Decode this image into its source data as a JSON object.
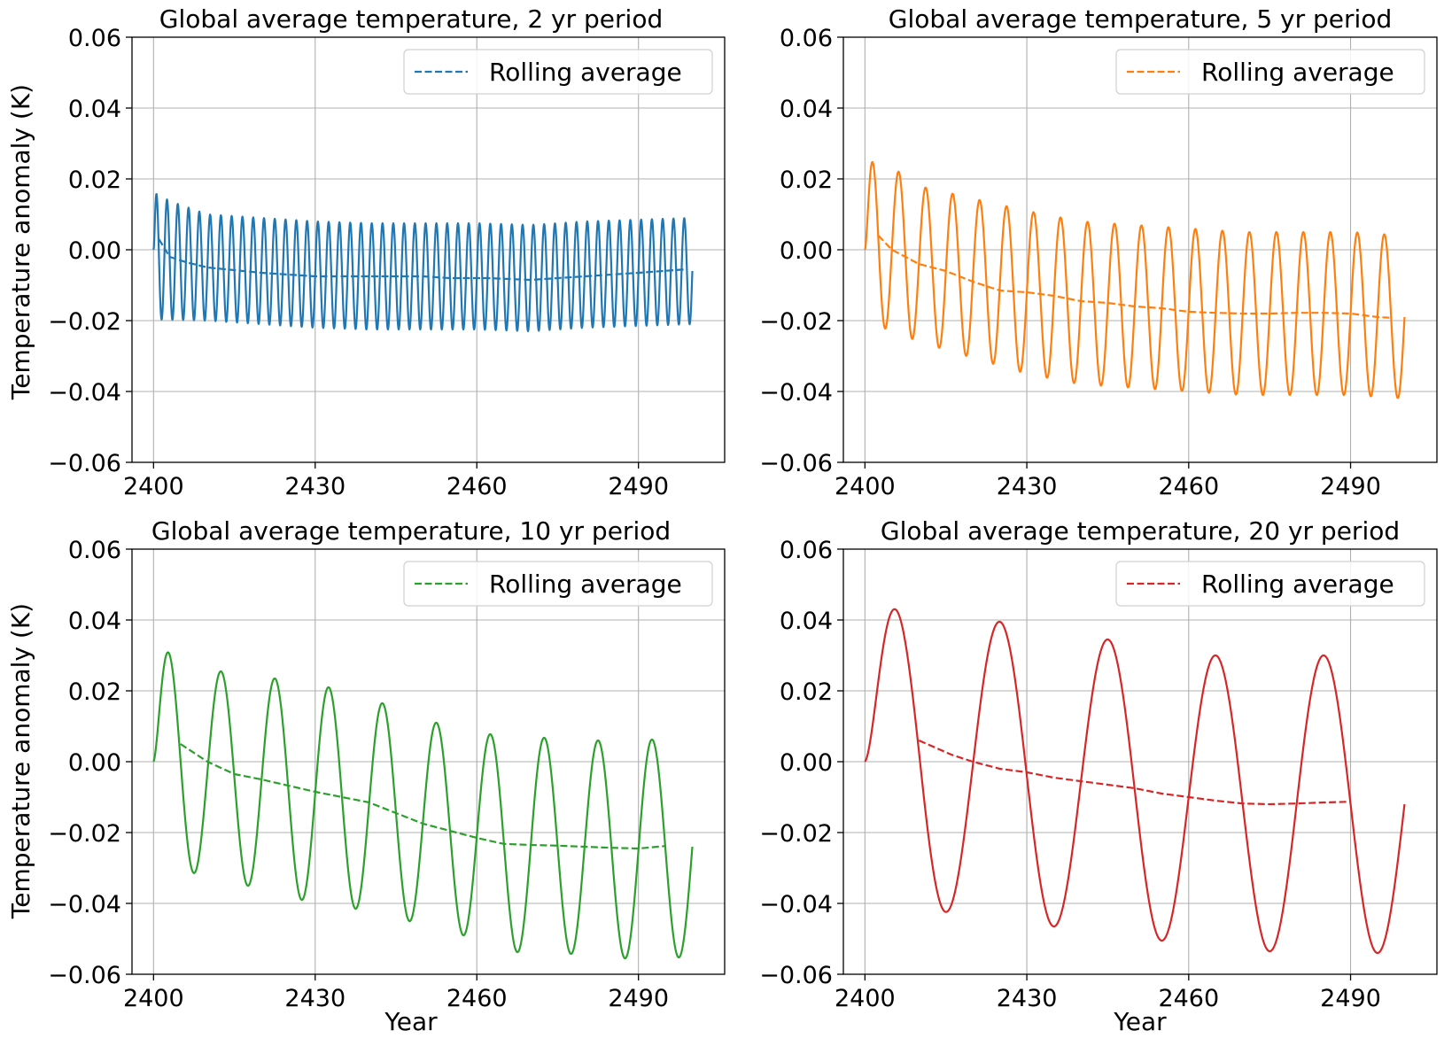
{
  "chart_data": [
    {
      "type": "line",
      "title": "Global average temperature, 2 yr period",
      "xlabel": "",
      "ylabel": "Temperature anomaly (K)",
      "xlim": [
        2396,
        2506
      ],
      "ylim": [
        -0.06,
        0.06
      ],
      "xticks": [
        "2400",
        "2430",
        "2460",
        "2490"
      ],
      "xtick_values": [
        2400,
        2430,
        2460,
        2490
      ],
      "yticks": [
        "0.06",
        "0.04",
        "0.02",
        "0.00",
        "−0.02",
        "−0.04",
        "−0.06"
      ],
      "ytick_values": [
        0.06,
        0.04,
        0.02,
        0.0,
        -0.02,
        -0.04,
        -0.06
      ],
      "grid": true,
      "legend_position": "top-right",
      "color": "#1f77b4",
      "series": [
        {
          "name": "",
          "style": "solid",
          "kind": "oscillation",
          "x_start": 2400,
          "x_end": 2500,
          "period": 2,
          "first_peak": 0.019,
          "mean_points": [
            [
              2400,
              -0.001
            ],
            [
              2403,
              -0.003
            ],
            [
              2410,
              -0.005
            ],
            [
              2420,
              -0.006
            ],
            [
              2430,
              -0.007
            ],
            [
              2440,
              -0.0075
            ],
            [
              2460,
              -0.0075
            ],
            [
              2470,
              -0.008
            ],
            [
              2480,
              -0.007
            ],
            [
              2490,
              -0.0065
            ],
            [
              2500,
              -0.006
            ]
          ],
          "amp_points": [
            [
              2400,
              0.02
            ],
            [
              2402,
              0.017
            ],
            [
              2410,
              0.015
            ],
            [
              2420,
              0.015
            ],
            [
              2440,
              0.015
            ],
            [
              2470,
              0.015
            ],
            [
              2500,
              0.015
            ]
          ]
        },
        {
          "name": "Rolling average",
          "style": "dashed",
          "points": [
            [
              2401,
              0.003
            ],
            [
              2403,
              -0.002
            ],
            [
              2406,
              -0.0035
            ],
            [
              2410,
              -0.005
            ],
            [
              2420,
              -0.0065
            ],
            [
              2430,
              -0.0075
            ],
            [
              2440,
              -0.0075
            ],
            [
              2450,
              -0.0075
            ],
            [
              2455,
              -0.008
            ],
            [
              2462,
              -0.008
            ],
            [
              2470,
              -0.0085
            ],
            [
              2480,
              -0.0075
            ],
            [
              2490,
              -0.0065
            ],
            [
              2499,
              -0.0055
            ]
          ]
        }
      ]
    },
    {
      "type": "line",
      "title": "Global average temperature, 5 yr period",
      "xlabel": "",
      "ylabel": "",
      "xlim": [
        2396,
        2506
      ],
      "ylim": [
        -0.06,
        0.06
      ],
      "xticks": [
        "2400",
        "2430",
        "2460",
        "2490"
      ],
      "xtick_values": [
        2400,
        2430,
        2460,
        2490
      ],
      "yticks": [
        "0.06",
        "0.04",
        "0.02",
        "0.00",
        "−0.02",
        "−0.04",
        "−0.06"
      ],
      "ytick_values": [
        0.06,
        0.04,
        0.02,
        0.0,
        -0.02,
        -0.04,
        -0.06
      ],
      "grid": true,
      "legend_position": "top-right",
      "color": "#ff7f0e",
      "series": [
        {
          "name": "",
          "style": "solid",
          "kind": "oscillation",
          "x_start": 2400,
          "x_end": 2500,
          "period": 5,
          "first_peak": 0.028,
          "mean_points": [
            [
              2400,
              0.002
            ],
            [
              2402,
              0.003
            ],
            [
              2410,
              -0.004
            ],
            [
              2420,
              -0.008
            ],
            [
              2430,
              -0.012
            ],
            [
              2440,
              -0.015
            ],
            [
              2450,
              -0.016
            ],
            [
              2460,
              -0.017
            ],
            [
              2470,
              -0.018
            ],
            [
              2480,
              -0.018
            ],
            [
              2490,
              -0.018
            ],
            [
              2500,
              -0.019
            ]
          ],
          "amp_points": [
            [
              2400,
              0.026
            ],
            [
              2405,
              0.023
            ],
            [
              2410,
              0.022
            ],
            [
              2420,
              0.0225
            ],
            [
              2430,
              0.023
            ],
            [
              2440,
              0.023
            ],
            [
              2460,
              0.023
            ],
            [
              2480,
              0.023
            ],
            [
              2500,
              0.023
            ]
          ]
        },
        {
          "name": "Rolling average",
          "style": "dashed",
          "points": [
            [
              2402.5,
              0.004
            ],
            [
              2405,
              0.0
            ],
            [
              2410,
              -0.004
            ],
            [
              2415,
              -0.006
            ],
            [
              2420,
              -0.009
            ],
            [
              2425,
              -0.0115
            ],
            [
              2430,
              -0.012
            ],
            [
              2435,
              -0.013
            ],
            [
              2440,
              -0.0145
            ],
            [
              2445,
              -0.015
            ],
            [
              2450,
              -0.016
            ],
            [
              2455,
              -0.0165
            ],
            [
              2460,
              -0.0175
            ],
            [
              2465,
              -0.0178
            ],
            [
              2470,
              -0.018
            ],
            [
              2475,
              -0.018
            ],
            [
              2480,
              -0.0178
            ],
            [
              2485,
              -0.0178
            ],
            [
              2490,
              -0.018
            ],
            [
              2495,
              -0.019
            ],
            [
              2497.5,
              -0.0192
            ]
          ]
        }
      ]
    },
    {
      "type": "line",
      "title": "Global average temperature, 10 yr period",
      "xlabel": "Year",
      "ylabel": "Temperature anomaly (K)",
      "xlim": [
        2396,
        2506
      ],
      "ylim": [
        -0.06,
        0.06
      ],
      "xticks": [
        "2400",
        "2430",
        "2460",
        "2490"
      ],
      "xtick_values": [
        2400,
        2430,
        2460,
        2490
      ],
      "yticks": [
        "0.06",
        "0.04",
        "0.02",
        "0.00",
        "−0.02",
        "−0.04",
        "−0.06"
      ],
      "ytick_values": [
        0.06,
        0.04,
        0.02,
        0.0,
        -0.02,
        -0.04,
        -0.06
      ],
      "grid": true,
      "legend_position": "top-right",
      "color": "#2ca02c",
      "series": [
        {
          "name": "",
          "style": "solid",
          "kind": "oscillation",
          "x_start": 2400,
          "x_end": 2500,
          "period": 10,
          "first_peak": 0.037,
          "mean_points": [
            [
              2400,
              0.004
            ],
            [
              2410,
              -0.003
            ],
            [
              2420,
              -0.006
            ],
            [
              2430,
              -0.009
            ],
            [
              2440,
              -0.012
            ],
            [
              2450,
              -0.017
            ],
            [
              2460,
              -0.021
            ],
            [
              2470,
              -0.024
            ],
            [
              2480,
              -0.024
            ],
            [
              2490,
              -0.025
            ],
            [
              2500,
              -0.024
            ]
          ],
          "amp_points": [
            [
              2400,
              0.034
            ],
            [
              2410,
              0.029
            ],
            [
              2420,
              0.03
            ],
            [
              2430,
              0.031
            ],
            [
              2440,
              0.03
            ],
            [
              2450,
              0.029
            ],
            [
              2460,
              0.029
            ],
            [
              2470,
              0.031
            ],
            [
              2480,
              0.03
            ],
            [
              2490,
              0.031
            ],
            [
              2500,
              0.031
            ]
          ]
        },
        {
          "name": "Rolling average",
          "style": "dashed",
          "points": [
            [
              2405,
              0.005
            ],
            [
              2410,
              0.0
            ],
            [
              2415,
              -0.0035
            ],
            [
              2420,
              -0.005
            ],
            [
              2430,
              -0.0085
            ],
            [
              2435,
              -0.01
            ],
            [
              2440,
              -0.0115
            ],
            [
              2445,
              -0.0145
            ],
            [
              2450,
              -0.0175
            ],
            [
              2455,
              -0.0195
            ],
            [
              2460,
              -0.0215
            ],
            [
              2465,
              -0.0232
            ],
            [
              2470,
              -0.0235
            ],
            [
              2475,
              -0.0237
            ],
            [
              2480,
              -0.024
            ],
            [
              2485,
              -0.0243
            ],
            [
              2490,
              -0.0245
            ],
            [
              2495,
              -0.0238
            ]
          ]
        }
      ]
    },
    {
      "type": "line",
      "title": "Global average temperature, 20 yr period",
      "xlabel": "Year",
      "ylabel": "",
      "xlim": [
        2396,
        2506
      ],
      "ylim": [
        -0.06,
        0.06
      ],
      "xticks": [
        "2400",
        "2430",
        "2460",
        "2490"
      ],
      "xtick_values": [
        2400,
        2430,
        2460,
        2490
      ],
      "yticks": [
        "0.06",
        "0.04",
        "0.02",
        "0.00",
        "−0.02",
        "−0.04",
        "−0.06"
      ],
      "ytick_values": [
        0.06,
        0.04,
        0.02,
        0.0,
        -0.02,
        -0.04,
        -0.06
      ],
      "grid": true,
      "legend_position": "top-right",
      "color": "#d62728",
      "series": [
        {
          "name": "",
          "style": "solid",
          "kind": "oscillation",
          "x_start": 2400,
          "x_end": 2500,
          "period": 20,
          "first_peak": 0.049,
          "mean_points": [
            [
              2400,
              0.004
            ],
            [
              2410,
              0.003
            ],
            [
              2420,
              -0.001
            ],
            [
              2430,
              -0.004
            ],
            [
              2440,
              -0.006
            ],
            [
              2450,
              -0.008
            ],
            [
              2460,
              -0.01
            ],
            [
              2470,
              -0.012
            ],
            [
              2480,
              -0.012
            ],
            [
              2490,
              -0.012
            ],
            [
              2500,
              -0.012
            ]
          ],
          "amp_points": [
            [
              2400,
              0.045
            ],
            [
              2410,
              0.045
            ],
            [
              2420,
              0.042
            ],
            [
              2430,
              0.042
            ],
            [
              2440,
              0.041
            ],
            [
              2450,
              0.042
            ],
            [
              2460,
              0.041
            ],
            [
              2470,
              0.041
            ],
            [
              2480,
              0.042
            ],
            [
              2490,
              0.042
            ],
            [
              2500,
              0.042
            ]
          ]
        },
        {
          "name": "Rolling average",
          "style": "dashed",
          "points": [
            [
              2410,
              0.006
            ],
            [
              2413,
              0.004
            ],
            [
              2416,
              0.002
            ],
            [
              2420,
              0.0
            ],
            [
              2425,
              -0.002
            ],
            [
              2430,
              -0.003
            ],
            [
              2435,
              -0.0045
            ],
            [
              2440,
              -0.0055
            ],
            [
              2445,
              -0.0065
            ],
            [
              2450,
              -0.0075
            ],
            [
              2455,
              -0.009
            ],
            [
              2460,
              -0.01
            ],
            [
              2465,
              -0.011
            ],
            [
              2470,
              -0.0118
            ],
            [
              2475,
              -0.012
            ],
            [
              2480,
              -0.0118
            ],
            [
              2485,
              -0.0115
            ],
            [
              2490,
              -0.0113
            ]
          ]
        }
      ]
    }
  ]
}
